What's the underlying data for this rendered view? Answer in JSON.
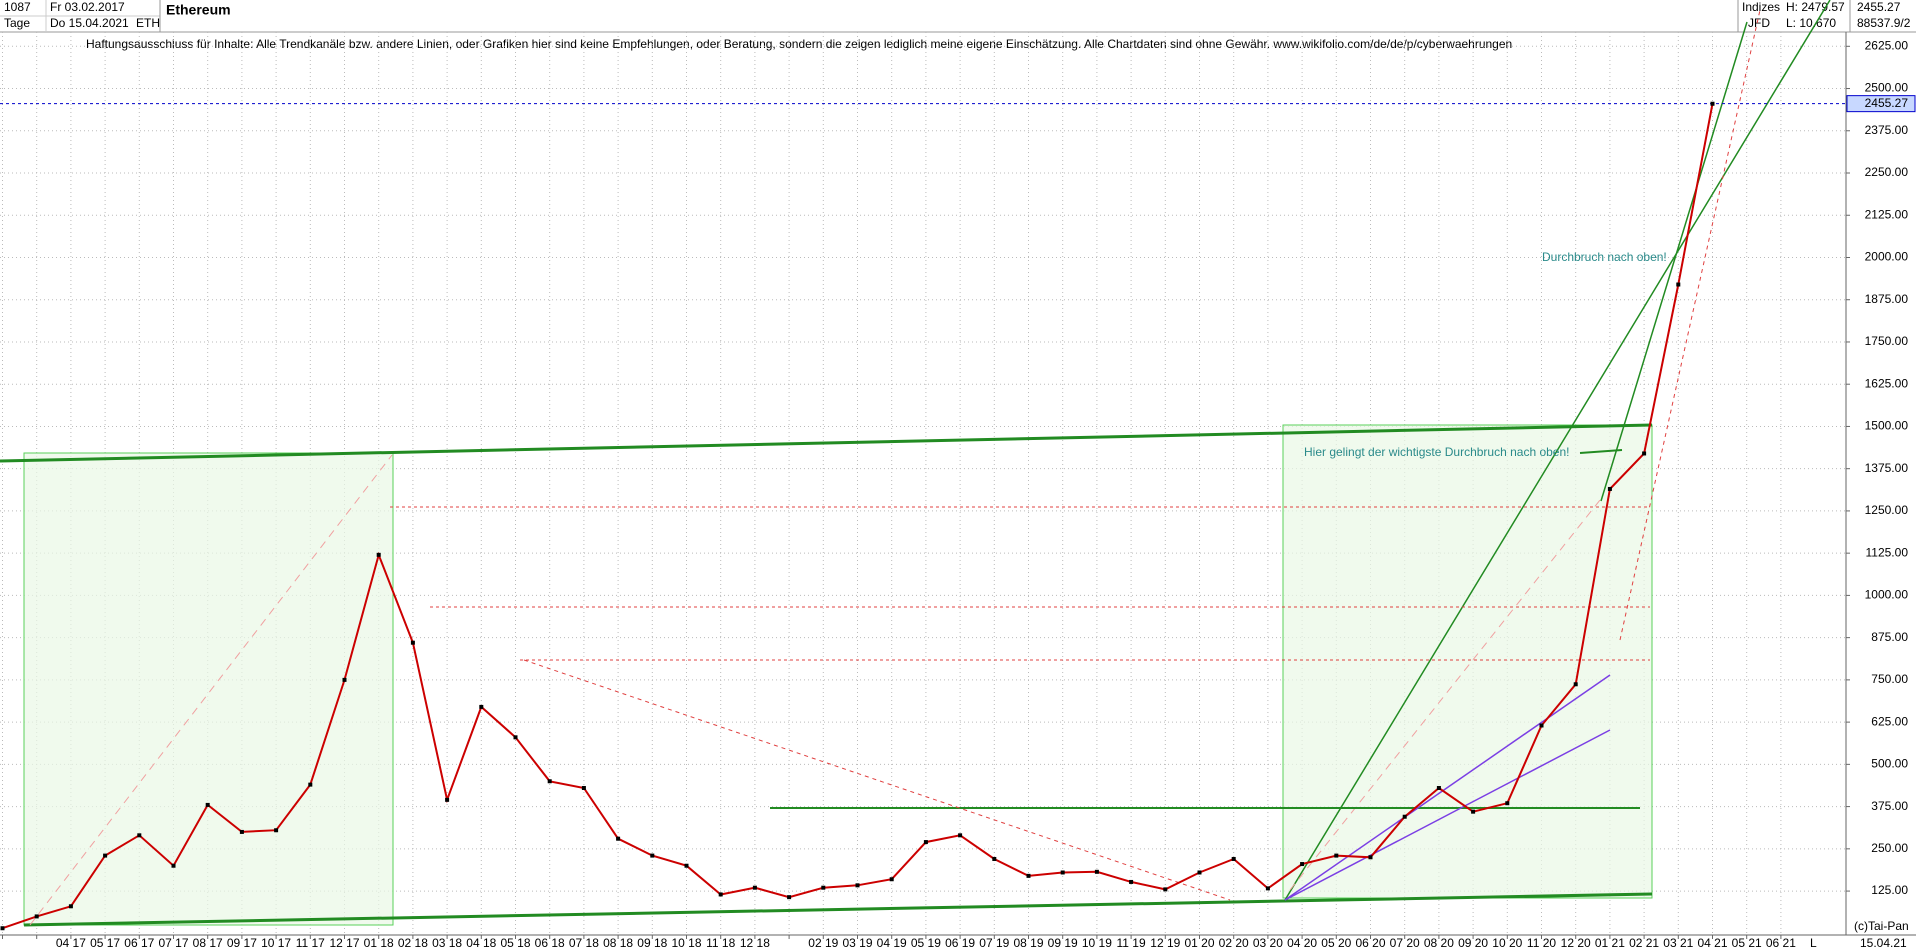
{
  "header": {
    "bars": "1087",
    "start": "Fr 03.02.2017",
    "interval": "Tage",
    "end": "Do 15.04.2021",
    "symbol": "ETH",
    "group": "Indizes",
    "exchange": "JFD",
    "high": "H: 2479.57",
    "low": "L: 10.670",
    "volume": "88537.9/2"
  },
  "chart_data": {
    "type": "line",
    "title": "Ethereum",
    "subtitle": "Haftungsausschluss für Inhalte: Alle Trendkanäle bzw. andere Linien, oder Grafiken hier sind keine Empfehlungen, oder Beratung, sondern die zeigen lediglich meine eigene Einschätzung. Alle Chartdaten sind ohne Gewähr.  www.wikifolio.com/de/de/p/cyberwaehrungen",
    "categories": [
      null,
      null,
      "04 17",
      "05 17",
      "06 17",
      "07 17",
      "08 17",
      "09 17",
      "10 17",
      "11 17",
      "12 17",
      "01 18",
      "02 18",
      "03 18",
      "04 18",
      "05 18",
      "06 18",
      "07 18",
      "08 18",
      "09 18",
      "10 18",
      "11 18",
      "12 18",
      null,
      "02 19",
      "03 19",
      "04 19",
      "05 19",
      "06 19",
      "07 19",
      "08 19",
      "09 19",
      "10 19",
      "11 19",
      "12 19",
      "01 20",
      "02 20",
      "03 20",
      "04 20",
      "05 20",
      "06 20",
      "07 20",
      "08 20",
      "09 20",
      "10 20",
      "11 20",
      "12 20",
      "01 21",
      "02 21",
      "03 21",
      "04 21",
      "05 21",
      "06 21"
    ],
    "values": [
      15,
      50,
      80,
      230,
      290,
      200,
      380,
      300,
      305,
      440,
      750,
      1120,
      860,
      395,
      670,
      580,
      450,
      430,
      280,
      230,
      200,
      115,
      135,
      107,
      135,
      142,
      160,
      270,
      290,
      220,
      170,
      180,
      182,
      152,
      130,
      180,
      220,
      133,
      205,
      230,
      225,
      345,
      430,
      360,
      385,
      615,
      737,
      1315,
      1420,
      1920,
      2455,
      null,
      null
    ],
    "color": "#cc0000",
    "ylim": [
      -5,
      2762
    ],
    "yticks": [
      {
        "value": 125,
        "label": "125.00"
      },
      {
        "value": 250,
        "label": "250.00"
      },
      {
        "value": 375,
        "label": "375.00"
      },
      {
        "value": 500,
        "label": "500.00"
      },
      {
        "value": 625,
        "label": "625.00"
      },
      {
        "value": 750,
        "label": "750.00"
      },
      {
        "value": 875,
        "label": "875.00"
      },
      {
        "value": 1000,
        "label": "1000.00"
      },
      {
        "value": 1125,
        "label": "1125.00"
      },
      {
        "value": 1250,
        "label": "1250.00"
      },
      {
        "value": 1375,
        "label": "1375.00"
      },
      {
        "value": 1500,
        "label": "1500.00"
      },
      {
        "value": 1625,
        "label": "1625.00"
      },
      {
        "value": 1750,
        "label": "1750.00"
      },
      {
        "value": 1875,
        "label": "1875.00"
      },
      {
        "value": 2000,
        "label": "2000.00"
      },
      {
        "value": 2125,
        "label": "2125.00"
      },
      {
        "value": 2250,
        "label": "2250.00"
      },
      {
        "value": 2375,
        "label": "2375.00"
      },
      {
        "value": 2500,
        "label": "2500.00"
      },
      {
        "value": 2625,
        "label": "2625.00"
      }
    ],
    "grid": true,
    "price_line": 2455.27,
    "annotations": [
      "Durchbruch nach oben!",
      "Hier gelingt der wichtigste Durchbruch nach oben!"
    ],
    "copyright": "(c)Tai-Pan",
    "x_end_label": "15.04.21",
    "scale_label": "L"
  }
}
